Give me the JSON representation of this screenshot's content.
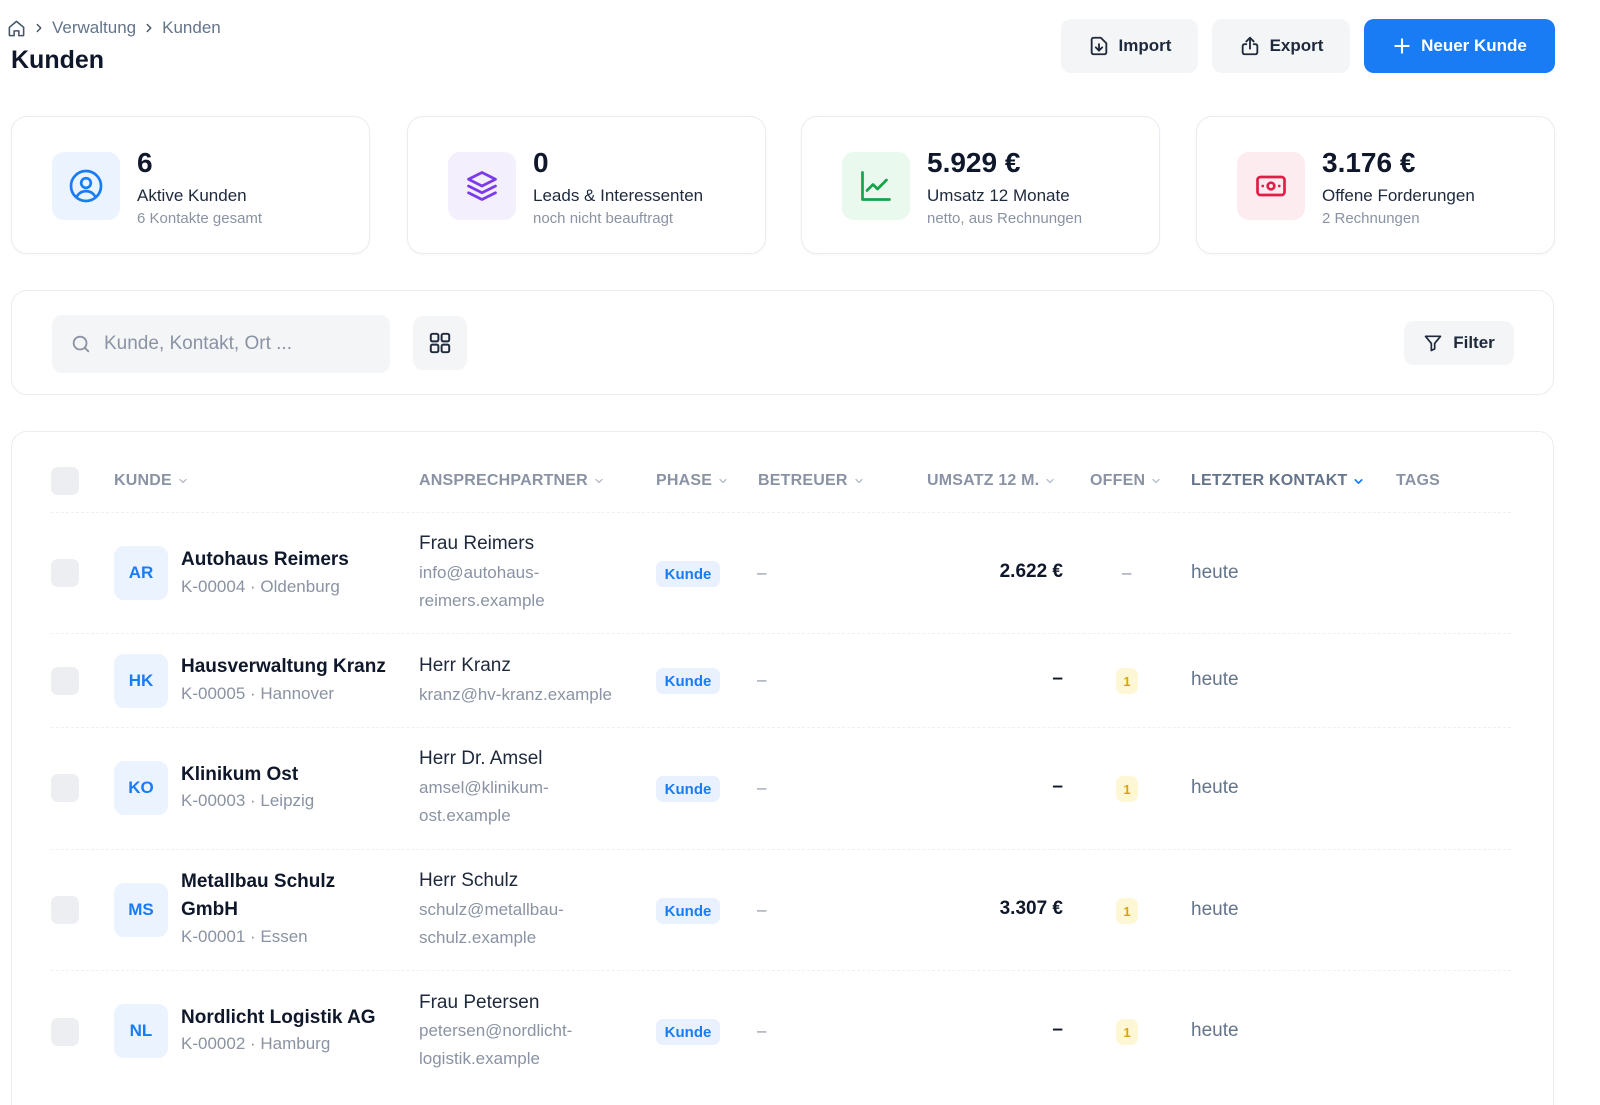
{
  "breadcrumb": {
    "home_icon": "home-icon",
    "items": [
      "Verwaltung",
      "Kunden"
    ]
  },
  "header": {
    "title": "Kunden",
    "import_label": "Import",
    "export_label": "Export",
    "new_label": "Neuer Kunde"
  },
  "stats": [
    {
      "icon": "user-circle-icon",
      "value": "6",
      "label": "Aktive Kunden",
      "sub": "6 Kontakte gesamt",
      "color": "#1a7cf5",
      "bg": "#eaf3fe"
    },
    {
      "icon": "layers-icon",
      "value": "0",
      "label": "Leads & Interessenten",
      "sub": "noch nicht beauftragt",
      "color": "#7c3aed",
      "bg": "#f3effd"
    },
    {
      "icon": "trend-chart-icon",
      "value": "5.929 €",
      "label": "Umsatz 12 Monate",
      "sub": "netto, aus Rechnungen",
      "color": "#16a34a",
      "bg": "#e9f9ee"
    },
    {
      "icon": "money-icon",
      "value": "3.176 €",
      "label": "Offene Forderungen",
      "sub": "2 Rechnungen",
      "color": "#e11d48",
      "bg": "#fdecef"
    }
  ],
  "search": {
    "placeholder": "Kunde, Kontakt, Ort ..."
  },
  "filter_label": "Filter",
  "columns": {
    "kunde": "KUNDE",
    "ansprechpartner": "ANSPRECHPARTNER",
    "phase": "PHASE",
    "betreuer": "BETREUER",
    "umsatz": "UMSATZ 12 M.",
    "offen": "OFFEN",
    "letzter_kontakt": "LETZTER KONTAKT",
    "tags": "TAGS"
  },
  "rows": [
    {
      "initials": "AR",
      "name_lines": [
        "Autohaus Reimers"
      ],
      "sub": "K-00004 · Oldenburg",
      "contact": "Frau Reimers",
      "mail_lines": [
        "info@autohaus-",
        "reimers.example"
      ],
      "phase": "Kunde",
      "betreuer": "–",
      "umsatz": "2.622 €",
      "offen": "–",
      "letzter": "heute"
    },
    {
      "initials": "HK",
      "name_lines": [
        "Hausverwaltung Kranz"
      ],
      "sub": "K-00005 · Hannover",
      "contact": "Herr Kranz",
      "mail_lines": [
        "kranz@hv-kranz.example"
      ],
      "phase": "Kunde",
      "betreuer": "–",
      "umsatz": "–",
      "offen": "1",
      "letzter": "heute"
    },
    {
      "initials": "KO",
      "name_lines": [
        "Klinikum Ost"
      ],
      "sub": "K-00003 · Leipzig",
      "contact": "Herr Dr. Amsel",
      "mail_lines": [
        "amsel@klinikum-",
        "ost.example"
      ],
      "phase": "Kunde",
      "betreuer": "–",
      "umsatz": "–",
      "offen": "1",
      "letzter": "heute"
    },
    {
      "initials": "MS",
      "name_lines": [
        "Metallbau Schulz",
        "GmbH"
      ],
      "sub": "K-00001 · Essen",
      "contact": "Herr Schulz",
      "mail_lines": [
        "schulz@metallbau-",
        "schulz.example"
      ],
      "phase": "Kunde",
      "betreuer": "–",
      "umsatz": "3.307 €",
      "offen": "1",
      "letzter": "heute"
    },
    {
      "initials": "NL",
      "name_lines": [
        "Nordlicht Logistik AG"
      ],
      "sub": "K-00002 · Hamburg",
      "contact": "Frau Petersen",
      "mail_lines": [
        "petersen@nordlicht-",
        "logistik.example"
      ],
      "phase": "Kunde",
      "betreuer": "–",
      "umsatz": "–",
      "offen": "1",
      "letzter": "heute"
    }
  ]
}
